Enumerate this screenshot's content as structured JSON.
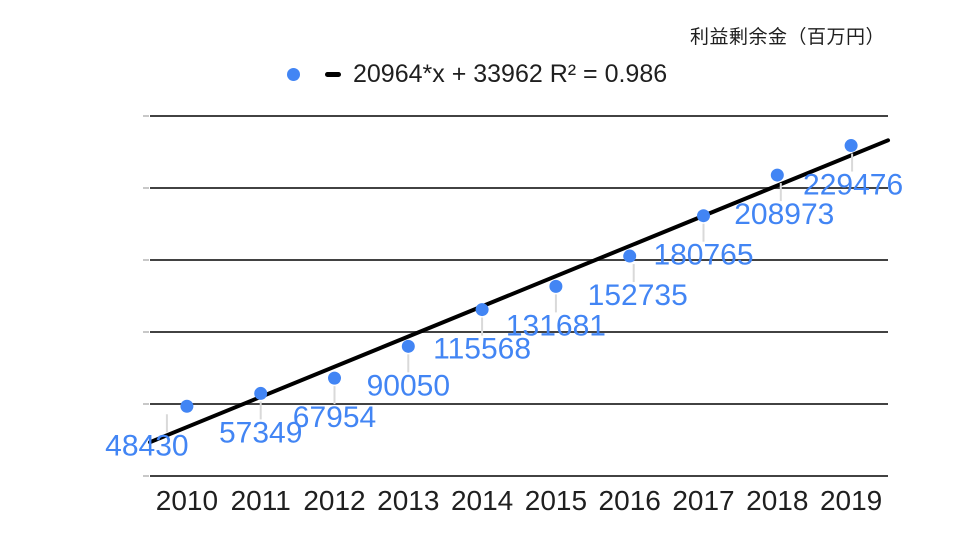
{
  "header": {
    "title": "利益剰余金（百万円）"
  },
  "legend": {
    "series_marker": "blue-dot",
    "trendline_marker": "black-dash",
    "label": "20964*x + 33962 R² = 0.986"
  },
  "chart_data": {
    "type": "scatter",
    "title": "利益剰余金（百万円）",
    "categories": [
      "2010",
      "2011",
      "2012",
      "2013",
      "2014",
      "2015",
      "2016",
      "2017",
      "2018",
      "2019"
    ],
    "values": [
      48430,
      57349,
      67954,
      90050,
      115568,
      131681,
      152735,
      180765,
      208973,
      229476
    ],
    "data_labels_shown": true,
    "xlabel": "",
    "ylabel": "",
    "ylim": [
      0,
      250000
    ],
    "grid_step": 50000,
    "gridlines": "horizontal",
    "y_tick_labels_shown": false,
    "legend_position": "top",
    "trendline": {
      "type": "linear",
      "slope": 20964,
      "intercept": 33962,
      "r2": 0.986,
      "equation_label": "20964*x + 33962 R² = 0.986"
    },
    "colors": {
      "point": "#4285f4",
      "data_label": "#4285f4",
      "trendline": "#000000",
      "gridline": "#424242",
      "tick": "#c8c8c8",
      "leader": "#d9d9d9",
      "axis_label": "#1f1f1f"
    },
    "label_dx": [
      -40,
      0,
      0,
      0,
      0,
      0,
      8,
      0,
      7,
      2
    ]
  }
}
